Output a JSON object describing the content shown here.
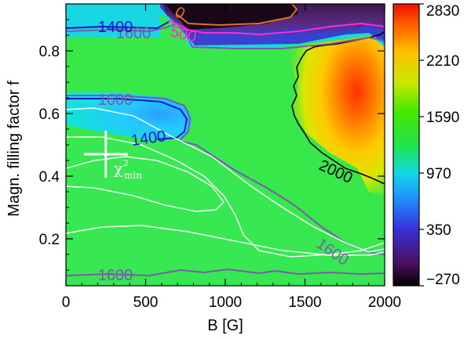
{
  "chart_data": {
    "type": "heatmap",
    "title": "",
    "xlabel": "B [G]",
    "ylabel": "Magn. filling factor f",
    "xlim": [
      0,
      2000
    ],
    "ylim": [
      0.05,
      0.95
    ],
    "x_ticks": [
      0,
      500,
      1000,
      1500,
      2000
    ],
    "y_ticks": [
      0.2,
      0.4,
      0.6,
      0.8
    ],
    "colorbar": {
      "range": [
        -270,
        2830
      ],
      "ticks": [
        2830,
        2210,
        1590,
        970,
        350,
        -270
      ],
      "colormap": [
        "#000000",
        "#4a1060",
        "#3a2fd8",
        "#1f8fff",
        "#12d8e6",
        "#20e44a",
        "#48e800",
        "#c8e800",
        "#ffc000",
        "#ff5a00",
        "#ee1000"
      ]
    },
    "contours": [
      {
        "level": 2000,
        "label": "2000",
        "color": "#000000"
      },
      {
        "level": 1600,
        "label": "1600",
        "color": "#7b5bab"
      },
      {
        "level": 1400,
        "label": "1400",
        "color": "#1414d6"
      },
      {
        "level": 500,
        "label": "500",
        "color": "#ff2ad8"
      },
      {
        "level": 0,
        "label": "0",
        "color": "#e0702a"
      }
    ],
    "chi2_contours": {
      "color": "#ffffff"
    },
    "minimum_marker": {
      "B": 250,
      "f": 0.47,
      "label_main": "χ",
      "label_sup": "2",
      "label_sub": "min"
    },
    "grid": false,
    "legend": "colorbar on right"
  }
}
